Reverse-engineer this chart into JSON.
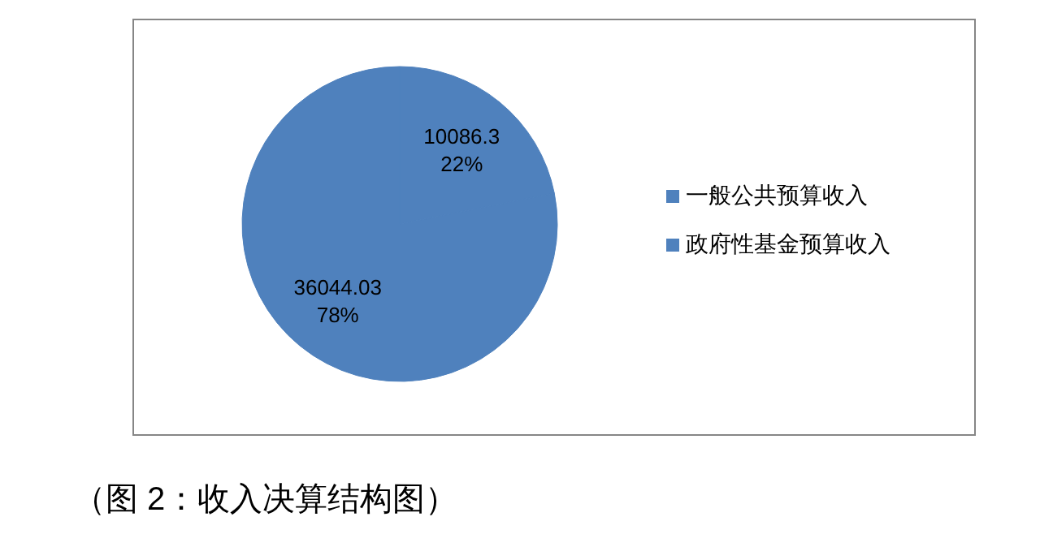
{
  "chart_data": {
    "type": "pie",
    "categories": [
      "一般公共预算收入",
      "政府性基金预算收入"
    ],
    "values": [
      10086.3,
      36044.03
    ],
    "colors": [
      "#4f81bd",
      "#4f81bd"
    ],
    "value_labels": [
      "10086.3\n22%",
      "36044.03\n78%"
    ],
    "legend": "right",
    "annotations": [
      "（图 2：收入决算结构图）"
    ]
  }
}
